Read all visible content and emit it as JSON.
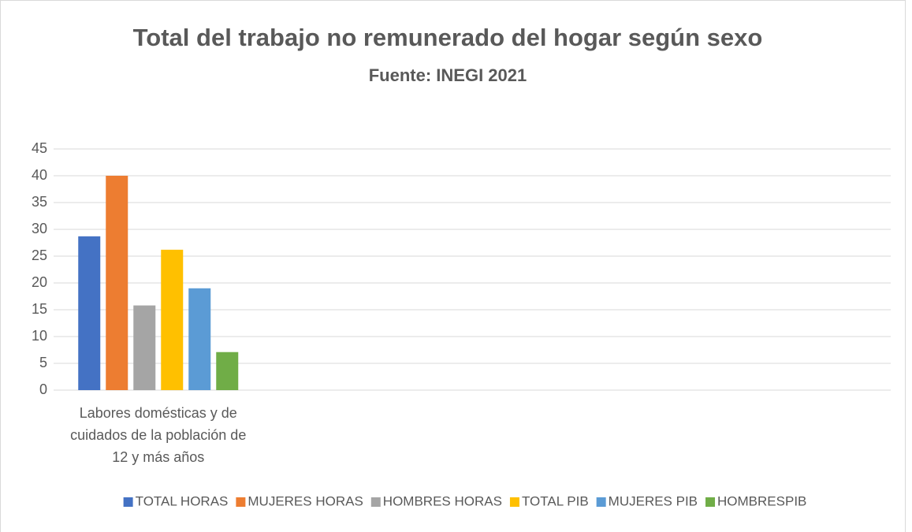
{
  "chart_data": {
    "type": "bar",
    "title": "Total del trabajo no remunerado del hogar según sexo",
    "subtitle": "Fuente: INEGI 2021",
    "categories": [
      "Labores domésticas y de cuidados de la población de 12 y más años"
    ],
    "series": [
      {
        "name": "TOTAL HORAS",
        "color": "#4472c4",
        "values": [
          28.7
        ]
      },
      {
        "name": "MUJERES HORAS",
        "color": "#ed7d31",
        "values": [
          40
        ]
      },
      {
        "name": "HOMBRES HORAS",
        "color": "#a5a5a5",
        "values": [
          15.8
        ]
      },
      {
        "name": "TOTAL PIB",
        "color": "#ffc000",
        "values": [
          26.2
        ]
      },
      {
        "name": "MUJERES PIB",
        "color": "#5b9bd5",
        "values": [
          19.0
        ]
      },
      {
        "name": "HOMBRESPIB",
        "color": "#70ad47",
        "values": [
          7.1
        ]
      }
    ],
    "ylim": [
      0,
      45
    ],
    "yticks": [
      0,
      5,
      10,
      15,
      20,
      25,
      30,
      35,
      40,
      45
    ],
    "grid": true,
    "legend": "bottom"
  }
}
